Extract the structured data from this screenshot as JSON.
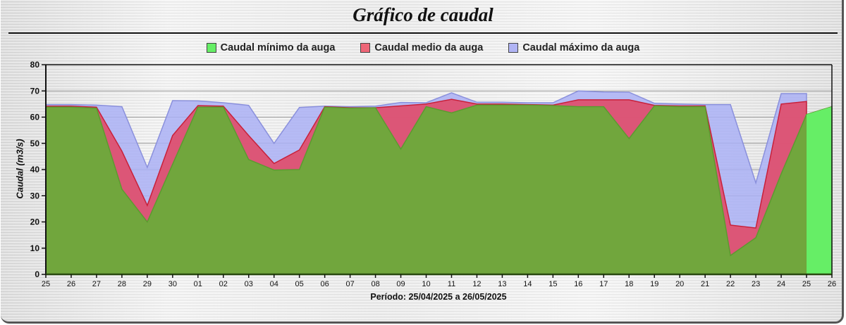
{
  "chart_data": {
    "type": "area",
    "title": "Gráfico de caudal",
    "xlabel": "Período: 25/04/2025 a 26/05/2025",
    "ylabel": "Caudal (m3/s)",
    "ylim": [
      0,
      80
    ],
    "yticks": [
      0,
      10,
      20,
      30,
      40,
      50,
      60,
      70,
      80
    ],
    "grid": true,
    "legend_position": "top",
    "categories": [
      "25",
      "26",
      "27",
      "28",
      "29",
      "30",
      "01",
      "02",
      "03",
      "04",
      "05",
      "06",
      "07",
      "08",
      "09",
      "10",
      "11",
      "12",
      "13",
      "14",
      "15",
      "16",
      "17",
      "18",
      "19",
      "20",
      "21",
      "22",
      "23",
      "24",
      "25",
      "26"
    ],
    "series": [
      {
        "name": "Caudal máximo da auga",
        "color": "#aab0f0",
        "values": [
          64.8,
          64.8,
          64.6,
          64.0,
          40.8,
          66.3,
          66.2,
          65.5,
          64.5,
          50.0,
          63.7,
          64.2,
          64.0,
          64.2,
          65.6,
          65.5,
          69.3,
          65.7,
          65.7,
          65.5,
          65.5,
          70.0,
          69.6,
          69.5,
          65.3,
          65.0,
          64.8,
          64.8,
          34.9,
          69.0,
          69.0,
          null
        ]
      },
      {
        "name": "Caudal medio da auga",
        "color": "#e05070",
        "values": [
          64.2,
          64.2,
          63.8,
          47.0,
          26.3,
          53.0,
          64.4,
          64.2,
          53.0,
          42.3,
          47.5,
          64.0,
          63.6,
          63.6,
          64.3,
          65.0,
          66.8,
          65.0,
          65.0,
          64.8,
          64.6,
          66.6,
          66.6,
          66.6,
          64.5,
          64.3,
          64.3,
          18.8,
          17.7,
          65.0,
          66.0,
          null
        ]
      },
      {
        "name": "Caudal mínimo da auga",
        "color": "#66ee66",
        "values": [
          63.8,
          63.8,
          63.4,
          32.5,
          20.0,
          42.0,
          63.8,
          63.8,
          43.8,
          39.8,
          40.0,
          63.8,
          63.4,
          63.6,
          47.8,
          64.0,
          61.6,
          64.6,
          64.6,
          64.6,
          64.4,
          64.0,
          64.0,
          51.8,
          64.3,
          64.0,
          64.0,
          7.2,
          14.0,
          38.4,
          61.0,
          64.0
        ]
      }
    ]
  },
  "header": {
    "title": "Gráfico de caudal"
  },
  "legend": {
    "items": [
      {
        "label": "Caudal mínimo da auga",
        "color": "#66ee66"
      },
      {
        "label": "Caudal medio da auga",
        "color": "#ee6677"
      },
      {
        "label": "Caudal máximo da auga",
        "color": "#b0b4f4"
      }
    ]
  },
  "axes": {
    "ylabel": "Caudal (m3/s)",
    "period": "Período: 25/04/2025 a 26/05/2025"
  }
}
